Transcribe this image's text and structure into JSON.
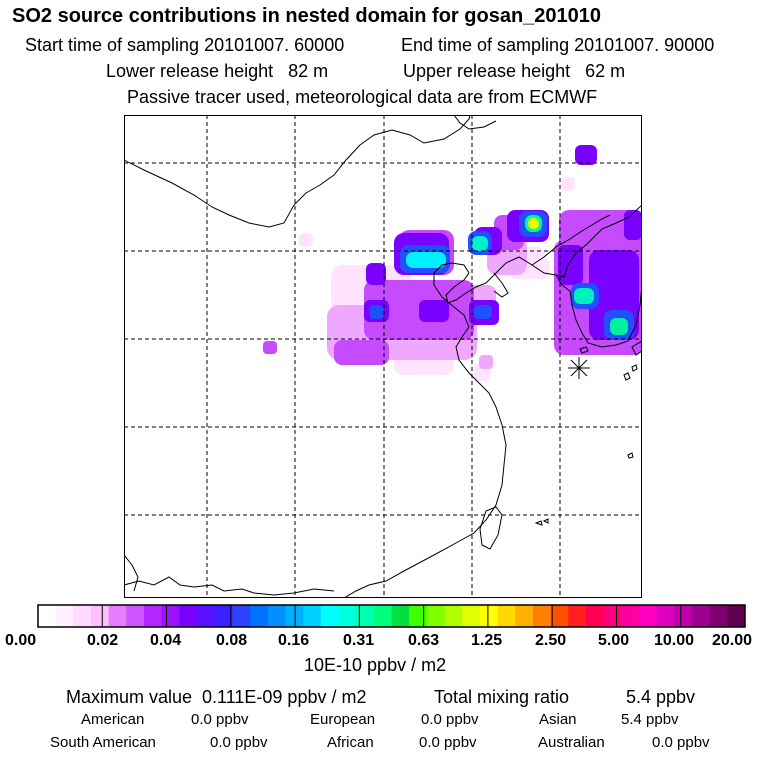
{
  "header": {
    "title": "SO2 source contributions in nested domain for gosan_201010",
    "start_time": "Start time of sampling 20101007. 60000",
    "end_time": "End time of sampling 20101007. 90000",
    "lower_height": "Lower release height   82 m",
    "upper_height": "Upper release height   62 m",
    "note": "Passive tracer used, meteorological data are from ECMWF"
  },
  "chart_data": {
    "type": "heatmap",
    "title": "SO2 source contributions in nested domain for gosan_201010",
    "grid": true,
    "legend_placement": "bottom",
    "colorbar": {
      "tick_labels": [
        "0.00",
        "0.02",
        "0.04",
        "0.08",
        "0.16",
        "0.31",
        "0.63",
        "1.25",
        "2.50",
        "5.00",
        "10.00",
        "20.00"
      ],
      "unit": "10E-10 ppbv / m2",
      "colors": [
        "#ffffff",
        "#fff0ff",
        "#ffd9ff",
        "#ffbfff",
        "#e87cff",
        "#cc55ff",
        "#b426ff",
        "#9a10ff",
        "#7a00ff",
        "#5a10ff",
        "#3a20ff",
        "#3040ff",
        "#0070ff",
        "#0090ff",
        "#00b0ff",
        "#00d0ff",
        "#00ffff",
        "#00ffdd",
        "#00ffb0",
        "#00ff80",
        "#00e040",
        "#40ff00",
        "#80ff00",
        "#b0ff00",
        "#e0ff00",
        "#ffff00",
        "#ffd800",
        "#ffb000",
        "#ff8000",
        "#ff5000",
        "#ff2020",
        "#ff0050",
        "#ff0080",
        "#ff00a0",
        "#ff00c0",
        "#e000c0",
        "#c000b0",
        "#a00090",
        "#800070",
        "#600050"
      ]
    },
    "receptor": {
      "name": "gosan",
      "marker": "asterisk"
    },
    "plumes": [
      {
        "region": "west-spot",
        "level": "0.02-0.04"
      },
      {
        "region": "north-china-plain",
        "level": "0.04-0.16"
      },
      {
        "region": "beijing-tianjin",
        "level": "0.16-0.31"
      },
      {
        "region": "liaoning-1",
        "level": "0.16-0.31"
      },
      {
        "region": "liaoning-2",
        "level": "0.31-0.63"
      },
      {
        "region": "north-korea-spot",
        "level": "0.04-0.08"
      },
      {
        "region": "korea-west-coast",
        "level": "0.16-0.31"
      },
      {
        "region": "korea-south",
        "level": "0.16-0.31"
      },
      {
        "region": "korea-east",
        "level": "0.04-0.08"
      }
    ]
  },
  "stats": {
    "max_label": "Maximum value  0.111E-09 ppbv / m2",
    "total_label": "Total mixing ratio",
    "total_value": "5.4 ppbv",
    "american_label": "American",
    "american_value": "0.0 ppbv",
    "european_label": "European",
    "european_value": "0.0 ppbv",
    "asian_label": "Asian",
    "asian_value": "5.4 ppbv",
    "south_american_label": "South American",
    "south_american_value": "0.0 ppbv",
    "african_label": "African",
    "african_value": "0.0 ppbv",
    "australian_label": "Australian",
    "australian_value": "0.0 ppbv"
  }
}
